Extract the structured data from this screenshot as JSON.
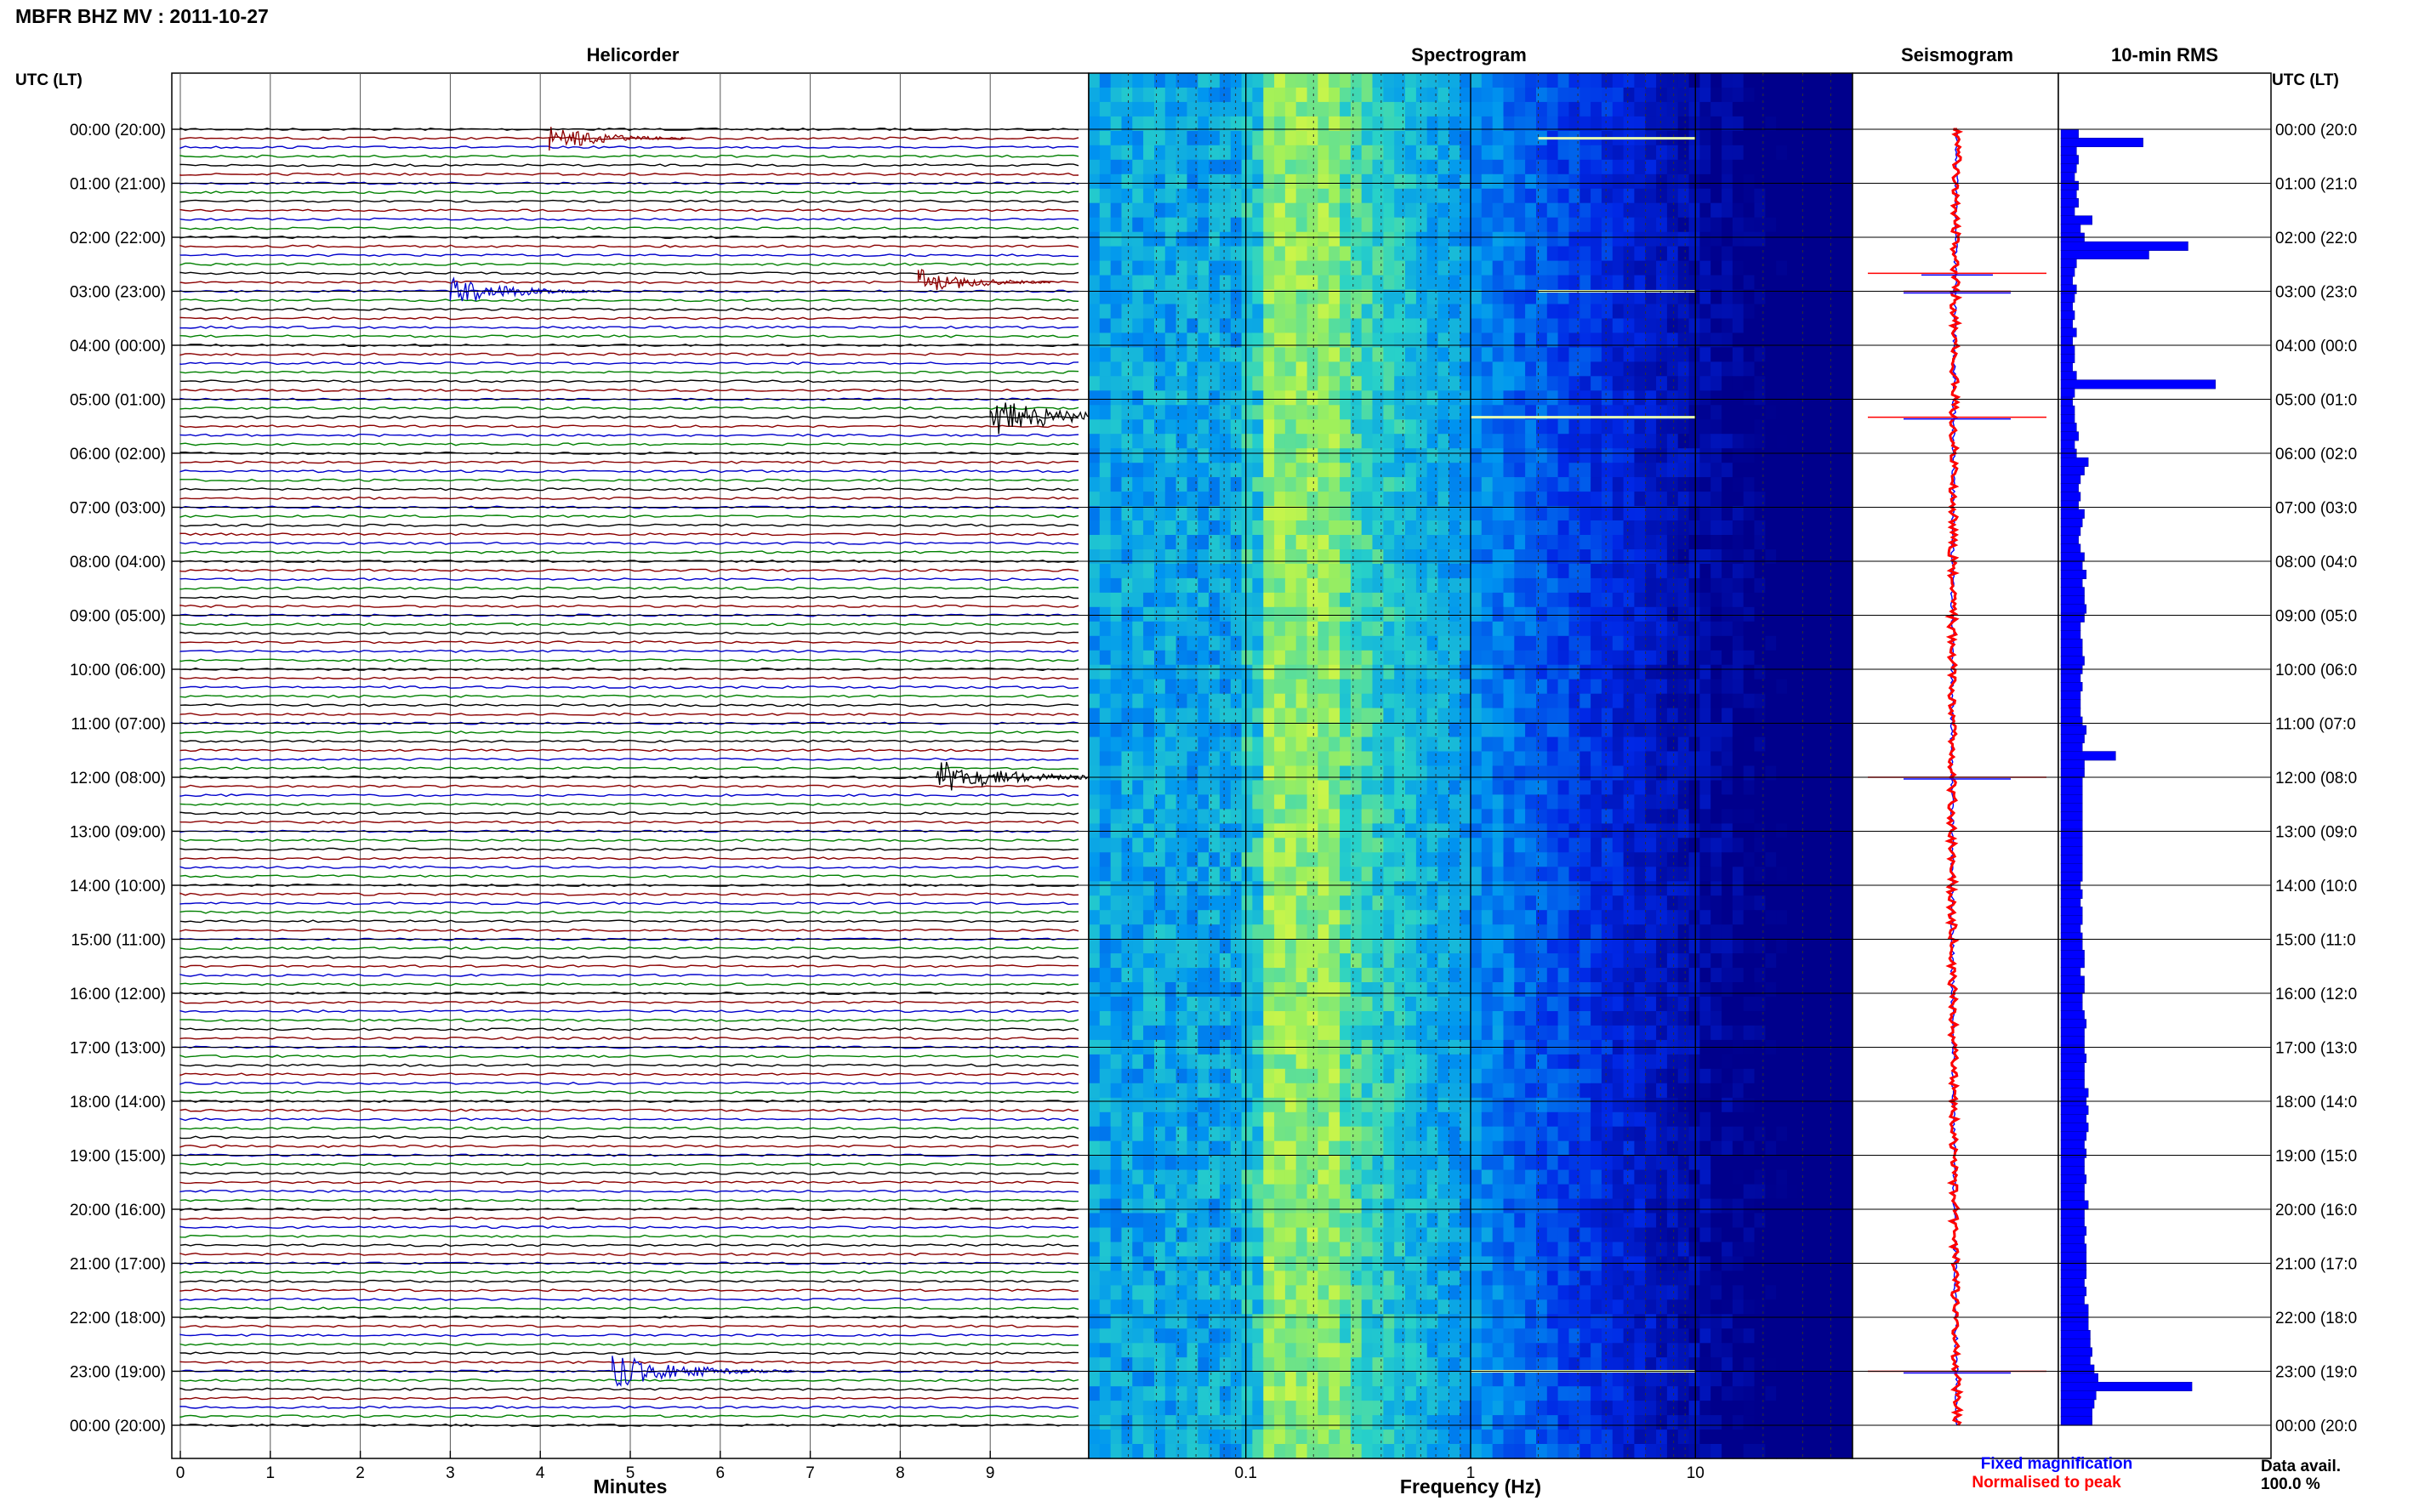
{
  "header": {
    "station_title": "MBFR BHZ MV : 2011-10-27"
  },
  "panels": {
    "helicorder": "Helicorder",
    "spectrogram": "Spectrogram",
    "seismogram": "Seismogram",
    "rms": "10-min RMS"
  },
  "axis_labels": {
    "left_time": "UTC (LT)",
    "right_time": "UTC (LT)",
    "minutes": "Minutes",
    "frequency": "Frequency (Hz)"
  },
  "time_ticks_left": [
    "00:00 (20:00)",
    "01:00 (21:00)",
    "02:00 (22:00)",
    "03:00 (23:00)",
    "04:00 (00:00)",
    "05:00 (01:00)",
    "06:00 (02:00)",
    "07:00 (03:00)",
    "08:00 (04:00)",
    "09:00 (05:00)",
    "10:00 (06:00)",
    "11:00 (07:00)",
    "12:00 (08:00)",
    "13:00 (09:00)",
    "14:00 (10:00)",
    "15:00 (11:00)",
    "16:00 (12:00)",
    "17:00 (13:00)",
    "18:00 (14:00)",
    "19:00 (15:00)",
    "20:00 (16:00)",
    "21:00 (17:00)",
    "22:00 (18:00)",
    "23:00 (19:00)",
    "00:00 (20:00)"
  ],
  "time_ticks_right": [
    "00:00 (20:0",
    "01:00 (21:0",
    "02:00 (22:0",
    "03:00 (23:0",
    "04:00 (00:0",
    "05:00 (01:0",
    "06:00 (02:0",
    "07:00 (03:0",
    "08:00 (04:0",
    "09:00 (05:0",
    "10:00 (06:0",
    "11:00 (07:0",
    "12:00 (08:0",
    "13:00 (09:0",
    "14:00 (10:0",
    "15:00 (11:0",
    "16:00 (12:0",
    "17:00 (13:0",
    "18:00 (14:0",
    "19:00 (15:0",
    "20:00 (16:0",
    "21:00 (17:0",
    "22:00 (18:0",
    "23:00 (19:0",
    "00:00 (20:0"
  ],
  "minute_ticks": [
    "0",
    "1",
    "2",
    "3",
    "4",
    "5",
    "6",
    "7",
    "8",
    "9"
  ],
  "frequency_ticks": [
    "0.1",
    "1",
    "10"
  ],
  "legend": {
    "fixed": "Fixed magnification",
    "normalised": "Normalised to peak",
    "fixed_color": "#0000ff",
    "normalised_color": "#ff0000"
  },
  "data_availability": {
    "label": "Data avail.",
    "value": "100.0 %"
  },
  "colors": {
    "trace_cycle": [
      "#000000",
      "#8b0000",
      "#0000cc",
      "#008000"
    ],
    "rms_bar": "#0000ff",
    "spectrogram_base": "#00008b"
  },
  "chart_data": {
    "type": "heatmap",
    "helicorder": {
      "lines_per_hour": 6,
      "line_minutes": 10,
      "events": [
        {
          "time": "00:10",
          "minute": 4.1,
          "amplitude": 0.9
        },
        {
          "time": "02:50",
          "minute": 8.2,
          "amplitude": 0.9
        },
        {
          "time": "03:00",
          "minute": 3.0,
          "amplitude": 1.0
        },
        {
          "time": "05:20",
          "minute": 9.0,
          "amplitude": 1.3
        },
        {
          "time": "12:00",
          "minute": 8.4,
          "amplitude": 1.2
        },
        {
          "time": "23:00",
          "minute": 4.8,
          "amplitude": 1.2
        }
      ]
    },
    "spectrogram": {
      "x_scale": "log",
      "xlim": [
        0.02,
        50
      ],
      "dominant_band_hz": [
        0.12,
        0.25
      ],
      "bright_lines": [
        {
          "time": "00:10",
          "fmin": 2.0,
          "fmax": 10.0
        },
        {
          "time": "03:00",
          "fmin": 2.0,
          "fmax": 10.0
        },
        {
          "time": "05:20",
          "fmin": 1.0,
          "fmax": 10.0
        },
        {
          "time": "23:00",
          "fmin": 1.0,
          "fmax": 10.0
        }
      ]
    },
    "rms_10min": [
      0.9,
      4.2,
      0.8,
      0.9,
      0.8,
      0.7,
      0.9,
      0.8,
      0.9,
      0.7,
      1.6,
      1.0,
      1.2,
      6.5,
      4.5,
      0.8,
      0.7,
      0.6,
      0.8,
      0.7,
      0.6,
      0.7,
      0.6,
      0.8,
      0.6,
      0.7,
      0.7,
      0.6,
      0.8,
      7.9,
      0.7,
      0.6,
      0.7,
      0.7,
      0.8,
      0.9,
      0.7,
      0.8,
      1.4,
      1.2,
      1.0,
      0.9,
      1.0,
      0.9,
      1.2,
      1.1,
      1.0,
      0.9,
      1.0,
      1.2,
      1.1,
      1.3,
      1.1,
      1.2,
      1.2,
      1.3,
      1.2,
      1.0,
      1.0,
      1.1,
      1.1,
      1.2,
      1.1,
      1.0,
      1.1,
      1.0,
      1.0,
      1.0,
      1.1,
      1.3,
      1.2,
      1.1,
      2.8,
      1.2,
      1.2,
      1.1,
      1.1,
      1.1,
      1.1,
      1.1,
      1.1,
      1.1,
      1.1,
      1.1,
      1.1,
      1.1,
      1.1,
      1.0,
      1.1,
      1.0,
      1.1,
      1.1,
      1.0,
      1.1,
      1.1,
      1.2,
      1.2,
      1.0,
      1.2,
      1.2,
      1.1,
      1.1,
      1.2,
      1.3,
      1.2,
      1.2,
      1.2,
      1.3,
      1.2,
      1.2,
      1.2,
      1.4,
      1.3,
      1.4,
      1.3,
      1.4,
      1.3,
      1.2,
      1.3,
      1.2,
      1.2,
      1.3,
      1.2,
      1.2,
      1.4,
      1.2,
      1.2,
      1.3,
      1.2,
      1.3,
      1.3,
      1.3,
      1.3,
      1.2,
      1.3,
      1.2,
      1.4,
      1.4,
      1.4,
      1.5,
      1.5,
      1.6,
      1.5,
      1.7,
      1.9,
      6.7,
      1.8,
      1.7,
      1.6,
      1.6
    ],
    "seismogram": {
      "spikes": [
        {
          "time": "02:40",
          "fixed": 0.4,
          "normalised": 1.0
        },
        {
          "time": "03:00",
          "fixed": 0.6,
          "normalised": 0.6
        },
        {
          "time": "05:20",
          "fixed": 0.6,
          "normalised": 1.0
        },
        {
          "time": "12:00",
          "fixed": 0.6,
          "normalised": 1.0
        },
        {
          "time": "23:00",
          "fixed": 0.6,
          "normalised": 1.0
        }
      ]
    }
  }
}
